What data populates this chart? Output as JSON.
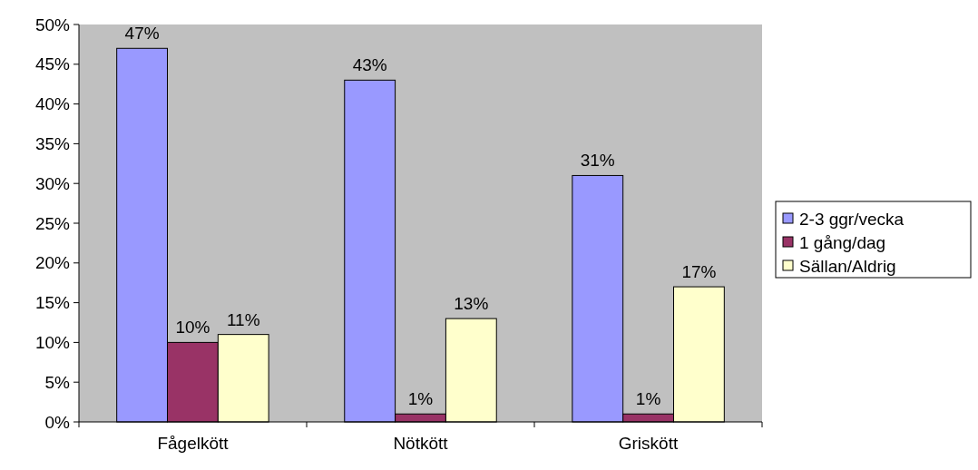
{
  "chart_data": {
    "type": "bar",
    "categories": [
      "Fågelkött",
      "Nötkött",
      "Griskött"
    ],
    "series": [
      {
        "name": "2-3 ggr/vecka",
        "color": "#9999ff",
        "values": [
          47,
          43,
          31
        ],
        "value_labels": [
          "47%",
          "43%",
          "31%"
        ]
      },
      {
        "name": "1 gång/dag",
        "color": "#993366",
        "values": [
          10,
          1,
          1
        ],
        "value_labels": [
          "10%",
          "1%",
          "1%"
        ]
      },
      {
        "name": "Sällan/Aldrig",
        "color": "#ffffcc",
        "values": [
          11,
          13,
          17
        ],
        "value_labels": [
          "11%",
          "13%",
          "17%"
        ]
      }
    ],
    "ylim": [
      0,
      50
    ],
    "yticks": [
      {
        "value": 0,
        "label": "0%"
      },
      {
        "value": 5,
        "label": "5%"
      },
      {
        "value": 10,
        "label": "10%"
      },
      {
        "value": 15,
        "label": "15%"
      },
      {
        "value": 20,
        "label": "20%"
      },
      {
        "value": 25,
        "label": "25%"
      },
      {
        "value": 30,
        "label": "30%"
      },
      {
        "value": 35,
        "label": "35%"
      },
      {
        "value": 40,
        "label": "40%"
      },
      {
        "value": 45,
        "label": "45%"
      },
      {
        "value": 50,
        "label": "50%"
      }
    ],
    "grid": false,
    "legend": "right"
  }
}
